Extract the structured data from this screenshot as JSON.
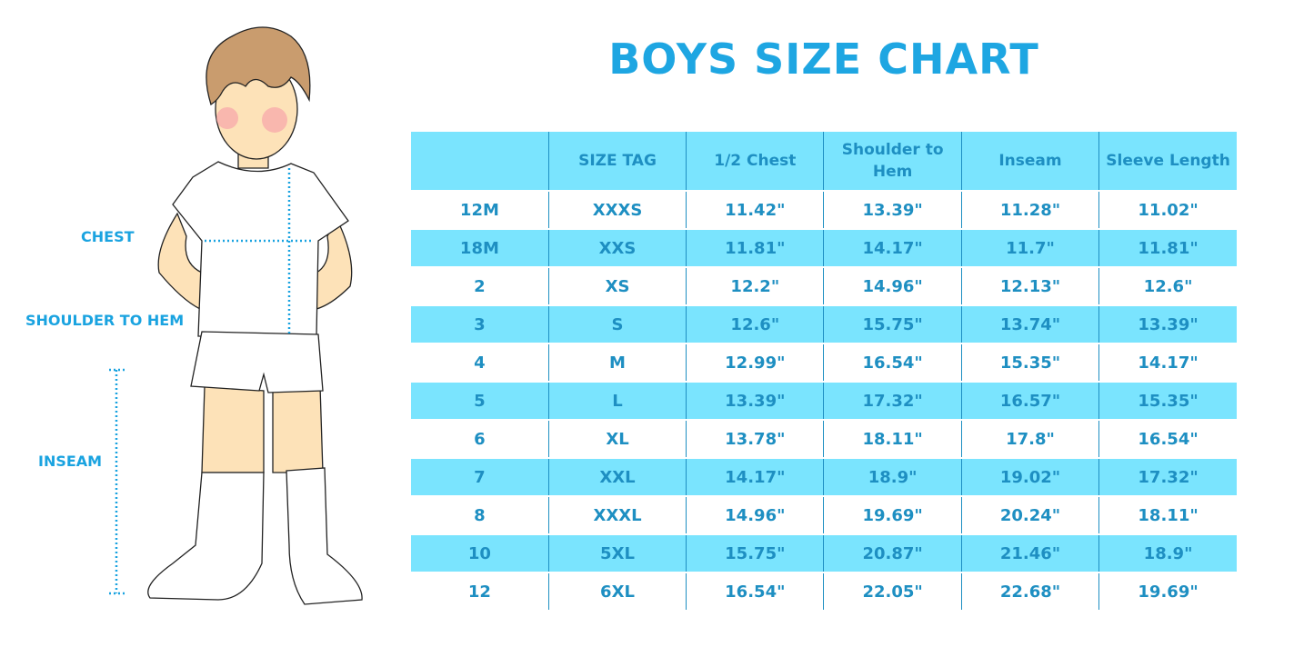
{
  "title": "BOYS SIZE CHART",
  "figure_labels": {
    "chest": "CHEST",
    "shoulder_to_hem": "SHOULDER TO HEM",
    "inseam": "INSEAM"
  },
  "colors": {
    "accent": "#1ea6e2",
    "band": "#7ae4fe",
    "text": "#1e8fc2"
  },
  "table": {
    "headers": [
      "",
      "SIZE TAG",
      "1/2 Chest",
      "Shoulder to Hem",
      "Inseam",
      "Sleeve Length"
    ],
    "rows": [
      [
        "12M",
        "XXXS",
        "11.42\"",
        "13.39\"",
        "11.28\"",
        "11.02\""
      ],
      [
        "18M",
        "XXS",
        "11.81\"",
        "14.17\"",
        "11.7\"",
        "11.81\""
      ],
      [
        "2",
        "XS",
        "12.2\"",
        "14.96\"",
        "12.13\"",
        "12.6\""
      ],
      [
        "3",
        "S",
        "12.6\"",
        "15.75\"",
        "13.74\"",
        "13.39\""
      ],
      [
        "4",
        "M",
        "12.99\"",
        "16.54\"",
        "15.35\"",
        "14.17\""
      ],
      [
        "5",
        "L",
        "13.39\"",
        "17.32\"",
        "16.57\"",
        "15.35\""
      ],
      [
        "6",
        "XL",
        "13.78\"",
        "18.11\"",
        "17.8\"",
        "16.54\""
      ],
      [
        "7",
        "XXL",
        "14.17\"",
        "18.9\"",
        "19.02\"",
        "17.32\""
      ],
      [
        "8",
        "XXXL",
        "14.96\"",
        "19.69\"",
        "20.24\"",
        "18.11\""
      ],
      [
        "10",
        "5XL",
        "15.75\"",
        "20.87\"",
        "21.46\"",
        "18.9\""
      ],
      [
        "12",
        "6XL",
        "16.54\"",
        "22.05\"",
        "22.68\"",
        "19.69\""
      ]
    ]
  }
}
